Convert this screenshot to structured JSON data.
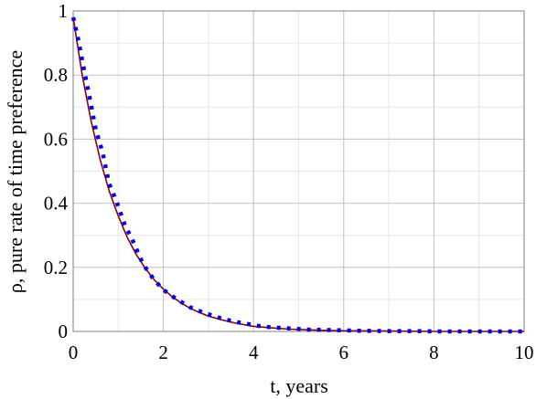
{
  "chart_data": {
    "type": "line",
    "title": "",
    "xlabel": "t,  years",
    "ylabel": "ρ, pure rate of time preference",
    "xlim": [
      0,
      10
    ],
    "ylim": [
      0,
      1
    ],
    "x_ticks": [
      "0",
      "2",
      "4",
      "6",
      "8",
      "10"
    ],
    "y_ticks": [
      "0",
      "0.2",
      "0.4",
      "0.6",
      "0.8",
      "1"
    ],
    "grid": true,
    "series": [
      {
        "style": "solid",
        "color": "#8b0000",
        "x": [
          0,
          0.2,
          0.4,
          0.6,
          0.8,
          1.0,
          1.2,
          1.4,
          1.6,
          1.8,
          2.0,
          2.2,
          2.4,
          2.6,
          2.8,
          3.0,
          3.3,
          3.6,
          4.0,
          4.4,
          4.8,
          5.2,
          5.6,
          6.0,
          7.0,
          8.0,
          9.0,
          10.0
        ],
        "y": [
          0.98,
          0.8,
          0.655,
          0.535,
          0.438,
          0.36,
          0.293,
          0.24,
          0.197,
          0.161,
          0.132,
          0.108,
          0.088,
          0.072,
          0.059,
          0.048,
          0.036,
          0.026,
          0.016,
          0.011,
          0.007,
          0.005,
          0.003,
          0.002,
          0.001,
          0.0,
          0.0,
          0.0
        ]
      },
      {
        "style": "dotted",
        "color": "#0000ee",
        "x": [
          0,
          0.1,
          0.25,
          0.35,
          0.5,
          0.65,
          0.8,
          0.95,
          1.15,
          1.3,
          1.55,
          1.8,
          2.0,
          2.3,
          2.6,
          2.9,
          3.3,
          3.6,
          4.2,
          4.6,
          5.2,
          5.8,
          6.4,
          7.0,
          7.6,
          8.2,
          8.8,
          9.4,
          10.0
        ],
        "y": [
          0.98,
          0.92,
          0.81,
          0.74,
          0.63,
          0.56,
          0.46,
          0.41,
          0.33,
          0.29,
          0.21,
          0.16,
          0.13,
          0.1,
          0.075,
          0.058,
          0.04,
          0.03,
          0.015,
          0.011,
          0.006,
          0.004,
          0.002,
          0.001,
          0.001,
          0.0,
          0.0,
          0.0,
          0.0
        ]
      }
    ]
  }
}
